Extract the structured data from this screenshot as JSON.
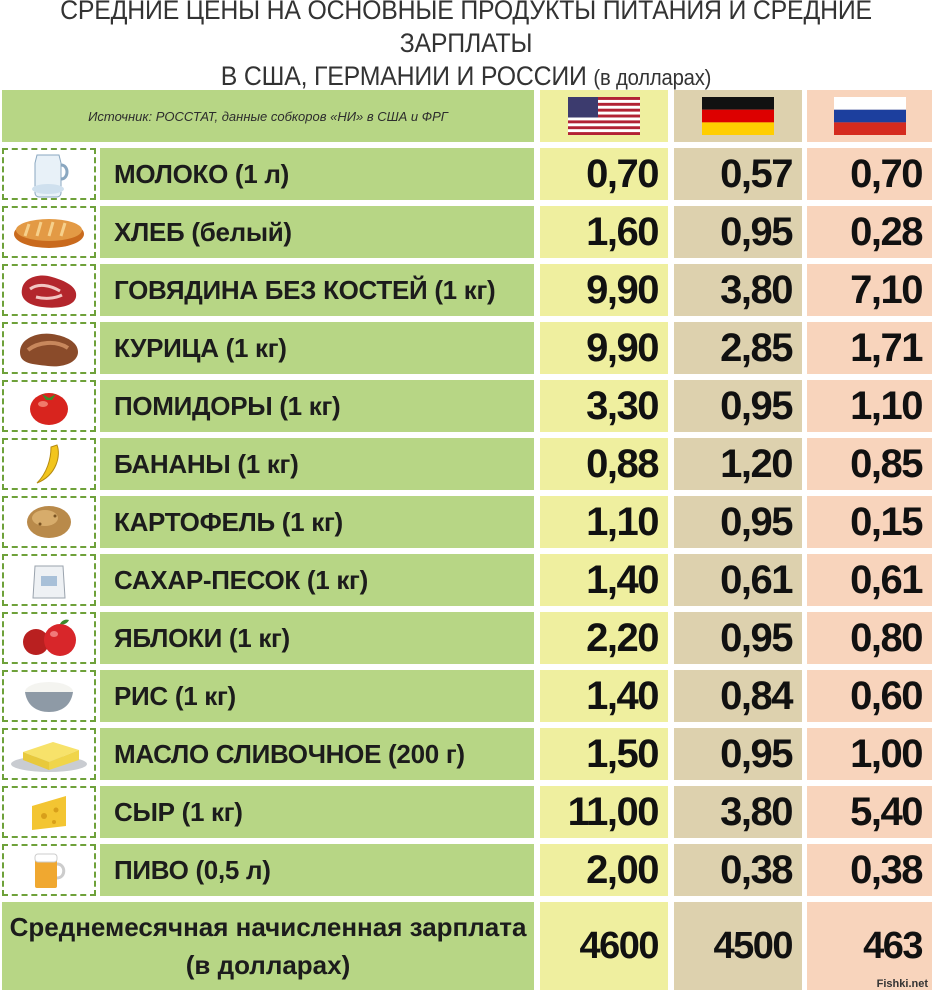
{
  "header": {
    "title_line1": "СРЕДНИЕ ЦЕНЫ НА ОСНОВНЫЕ ПРОДУКТЫ ПИТАНИЯ И СРЕДНИЕ ЗАРПЛАТЫ",
    "title_line2_main": "В США, ГЕРМАНИИ И РОССИИ",
    "title_line2_small": "(в долларах)"
  },
  "table": {
    "source": "Источник: РОССТАТ, данные собкоров «НИ» в США и ФРГ",
    "flags": [
      "us-flag-icon",
      "germany-flag-icon",
      "russia-flag-icon"
    ],
    "colors": {
      "green": "#b7d685",
      "usa": "#efef9f",
      "germany": "#ddd1ae",
      "russia": "#f8d4bc",
      "dashed": "#6ea13a"
    },
    "rows": [
      {
        "icon": "milk-jug-icon",
        "label": "МОЛОКО (1 л)",
        "usa": "0,70",
        "germany": "0,57",
        "russia": "0,70"
      },
      {
        "icon": "bread-loaf-icon",
        "label": "ХЛЕБ (белый)",
        "usa": "1,60",
        "germany": "0,95",
        "russia": "0,28"
      },
      {
        "icon": "beef-steak-icon",
        "label": "ГОВЯДИНА БЕЗ КОСТЕЙ (1 кг)",
        "usa": "9,90",
        "germany": "3,80",
        "russia": "7,10"
      },
      {
        "icon": "chicken-meat-icon",
        "label": "КУРИЦА (1 кг)",
        "usa": "9,90",
        "germany": "2,85",
        "russia": "1,71"
      },
      {
        "icon": "tomato-icon",
        "label": "ПОМИДОРЫ (1 кг)",
        "usa": "3,30",
        "germany": "0,95",
        "russia": "1,10"
      },
      {
        "icon": "banana-icon",
        "label": "БАНАНЫ (1 кг)",
        "usa": "0,88",
        "germany": "1,20",
        "russia": "0,85"
      },
      {
        "icon": "potato-icon",
        "label": "КАРТОФЕЛЬ (1 кг)",
        "usa": "1,10",
        "germany": "0,95",
        "russia": "0,15"
      },
      {
        "icon": "sugar-bag-icon",
        "label": "САХАР-ПЕСОК (1 кг)",
        "usa": "1,40",
        "germany": "0,61",
        "russia": "0,61"
      },
      {
        "icon": "apples-icon",
        "label": "ЯБЛОКИ (1 кг)",
        "usa": "2,20",
        "germany": "0,95",
        "russia": "0,80"
      },
      {
        "icon": "rice-bowl-icon",
        "label": "РИС (1 кг)",
        "usa": "1,40",
        "germany": "0,84",
        "russia": "0,60"
      },
      {
        "icon": "butter-icon",
        "label": "МАСЛО СЛИВОЧНОЕ (200 г)",
        "usa": "1,50",
        "germany": "0,95",
        "russia": "1,00"
      },
      {
        "icon": "cheese-icon",
        "label": "СЫР (1 кг)",
        "usa": "11,00",
        "germany": "3,80",
        "russia": "5,40"
      },
      {
        "icon": "beer-mug-icon",
        "label": "ПИВО (0,5 л)",
        "usa": "2,00",
        "germany": "0,38",
        "russia": "0,38"
      }
    ],
    "salary": {
      "label_line1": "Среднемесячная начисленная зарплата",
      "label_line2": "(в долларах)",
      "usa": "4600",
      "germany": "4500",
      "russia": "463"
    }
  },
  "watermark": "Fishki.net"
}
